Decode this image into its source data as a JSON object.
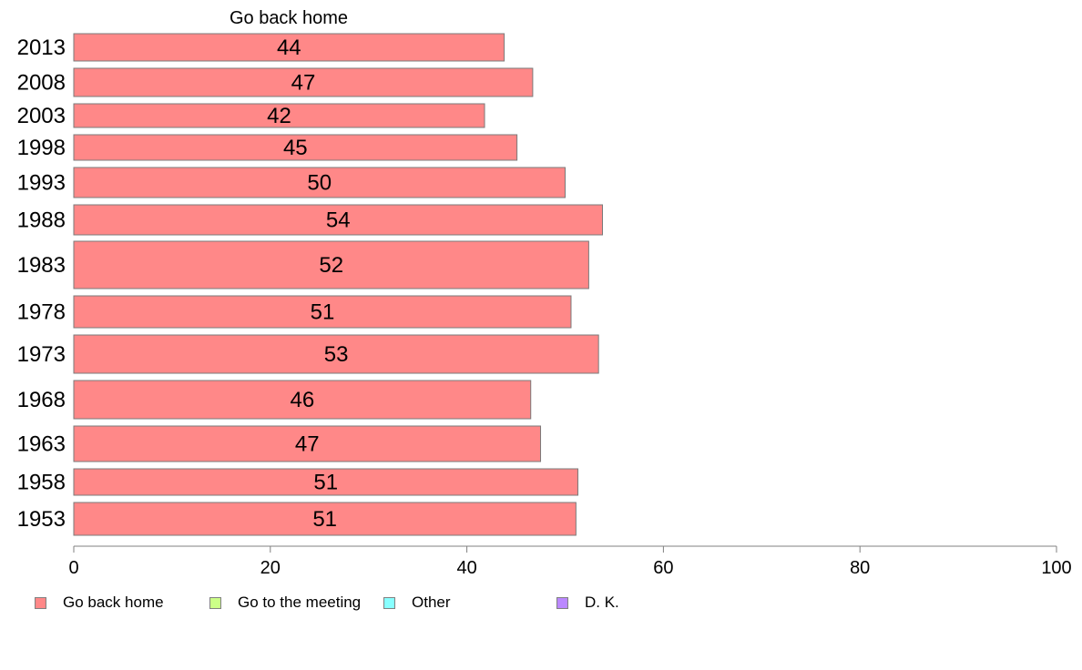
{
  "chart_data": {
    "type": "bar",
    "orientation": "horizontal",
    "column_header": "Go back home",
    "categories": [
      "2013",
      "2008",
      "2003",
      "1998",
      "1993",
      "1988",
      "1983",
      "1978",
      "1973",
      "1968",
      "1963",
      "1958",
      "1953"
    ],
    "series": [
      {
        "name": "Go back home",
        "color": "#ff8888",
        "values": [
          44,
          47,
          42,
          45,
          50,
          54,
          52,
          51,
          53,
          46,
          47,
          51,
          51
        ],
        "exact_values": [
          43.8,
          46.7,
          41.8,
          45.1,
          50.0,
          53.8,
          52.4,
          50.6,
          53.4,
          46.5,
          47.5,
          51.3,
          51.1
        ]
      }
    ],
    "xlim": [
      0,
      100
    ],
    "xticks": [
      0,
      20,
      40,
      60,
      80,
      100
    ],
    "grid": false,
    "legend_position": "bottom-left"
  },
  "legend": [
    {
      "label": "Go back home",
      "color": "#ff8888"
    },
    {
      "label": "Go to the meeting",
      "color": "#ccff88"
    },
    {
      "label": "Other",
      "color": "#88ffff"
    },
    {
      "label": "D. K.",
      "color": "#bb88ff"
    }
  ]
}
